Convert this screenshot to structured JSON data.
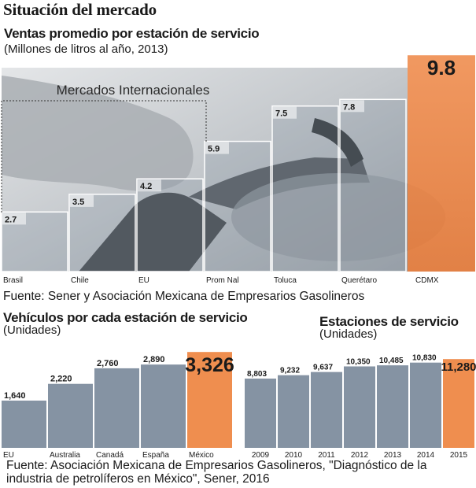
{
  "title": "Situación del mercado",
  "chart_data": [
    {
      "type": "bar",
      "title": "Ventas promedio por estación de servicio",
      "subtitle": "(Millones de litros al año, 2013)",
      "annotation": "Mercados Internacionales",
      "categories": [
        "Brasil",
        "Chile",
        "EU",
        "Prom Nal",
        "Toluca",
        "Querétaro",
        "CDMX"
      ],
      "values": [
        2.7,
        3.5,
        4.2,
        5.9,
        7.5,
        7.8,
        9.8
      ],
      "labels": [
        "2.7",
        "3.5",
        "4.2",
        "5.9",
        "7.5",
        "7.8",
        "9.8"
      ],
      "ylim": [
        0,
        10.7
      ],
      "highlight": "CDMX",
      "source": "Fuente: Sener y Asociación Mexicana de Empresarios Gasolineros"
    },
    {
      "type": "bar",
      "title": "Vehículos por cada estación de servicio",
      "subtitle": "(Unidades)",
      "categories": [
        "EU",
        "Australia",
        "Canadá",
        "España",
        "México"
      ],
      "values": [
        1640,
        2220,
        2760,
        2890,
        3326
      ],
      "labels": [
        "1,640",
        "2,220",
        "2,760",
        "2,890",
        "3,326"
      ],
      "ylim": [
        0,
        3850
      ],
      "highlight": "México"
    },
    {
      "type": "bar",
      "title": "Estaciones de servicio",
      "subtitle": "(Unidades)",
      "categories": [
        "2009",
        "2010",
        "2011",
        "2012",
        "2013",
        "2014",
        "2015"
      ],
      "values": [
        8803,
        9232,
        9637,
        10350,
        10485,
        10830,
        11280
      ],
      "labels": [
        "8,803",
        "9,232",
        "9,637",
        "10,350",
        "10,485",
        "10,830",
        "11,280"
      ],
      "ylim": [
        0,
        14200
      ],
      "highlight": "2015"
    }
  ],
  "footer_source": "Fuente: Asociación Mexicana de Empresarios Gasolineros, \"Diagnóstico de la industria de petrolíferos en México\", Sener, 2016",
  "colors": {
    "bar": "#8593a3",
    "highlight": "#ef8e4f",
    "photo": "#c8ccd1",
    "text": "#1a1a1a"
  }
}
